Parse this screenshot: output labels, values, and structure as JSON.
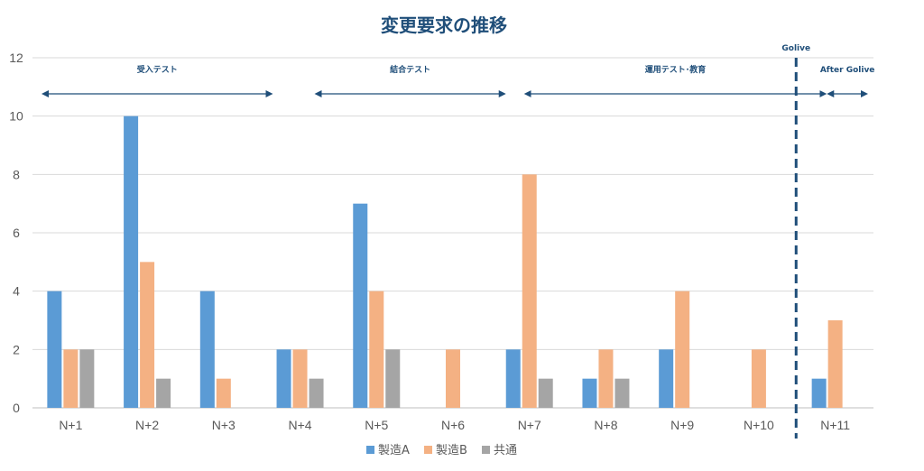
{
  "chart_data": {
    "type": "bar",
    "title": "変更要求の推移",
    "categories": [
      "N+1",
      "N+2",
      "N+3",
      "N+4",
      "N+5",
      "N+6",
      "N+7",
      "N+8",
      "N+9",
      "N+10",
      "N+11"
    ],
    "series": [
      {
        "name": "製造A",
        "color": "#5b9bd5",
        "values": [
          4,
          10,
          4,
          2,
          7,
          0,
          2,
          1,
          2,
          0,
          1
        ]
      },
      {
        "name": "製造B",
        "color": "#f4b183",
        "values": [
          2,
          5,
          1,
          2,
          4,
          2,
          8,
          2,
          4,
          2,
          3
        ]
      },
      {
        "name": "共通",
        "color": "#a5a5a5",
        "values": [
          2,
          1,
          0,
          1,
          2,
          0,
          1,
          1,
          0,
          0,
          0
        ]
      }
    ],
    "ylim": [
      0,
      12
    ],
    "yticks": [
      0,
      2,
      4,
      6,
      8,
      10,
      12
    ],
    "grid": true,
    "legend": "bottom",
    "annotations": {
      "golive_label": "Golive",
      "golive_after_category": "N+10",
      "golive_line_color": "#1f4e79",
      "phases": [
        {
          "label": "受入テスト",
          "from": "N+1",
          "to": "N+4"
        },
        {
          "label": "結合テスト",
          "from": "N+4",
          "to": "N+7"
        },
        {
          "label": "運用テスト･教育",
          "from": "N+7",
          "to": "Golive"
        },
        {
          "label": "After Golive",
          "from": "Golive",
          "to": "N+11"
        }
      ]
    }
  }
}
